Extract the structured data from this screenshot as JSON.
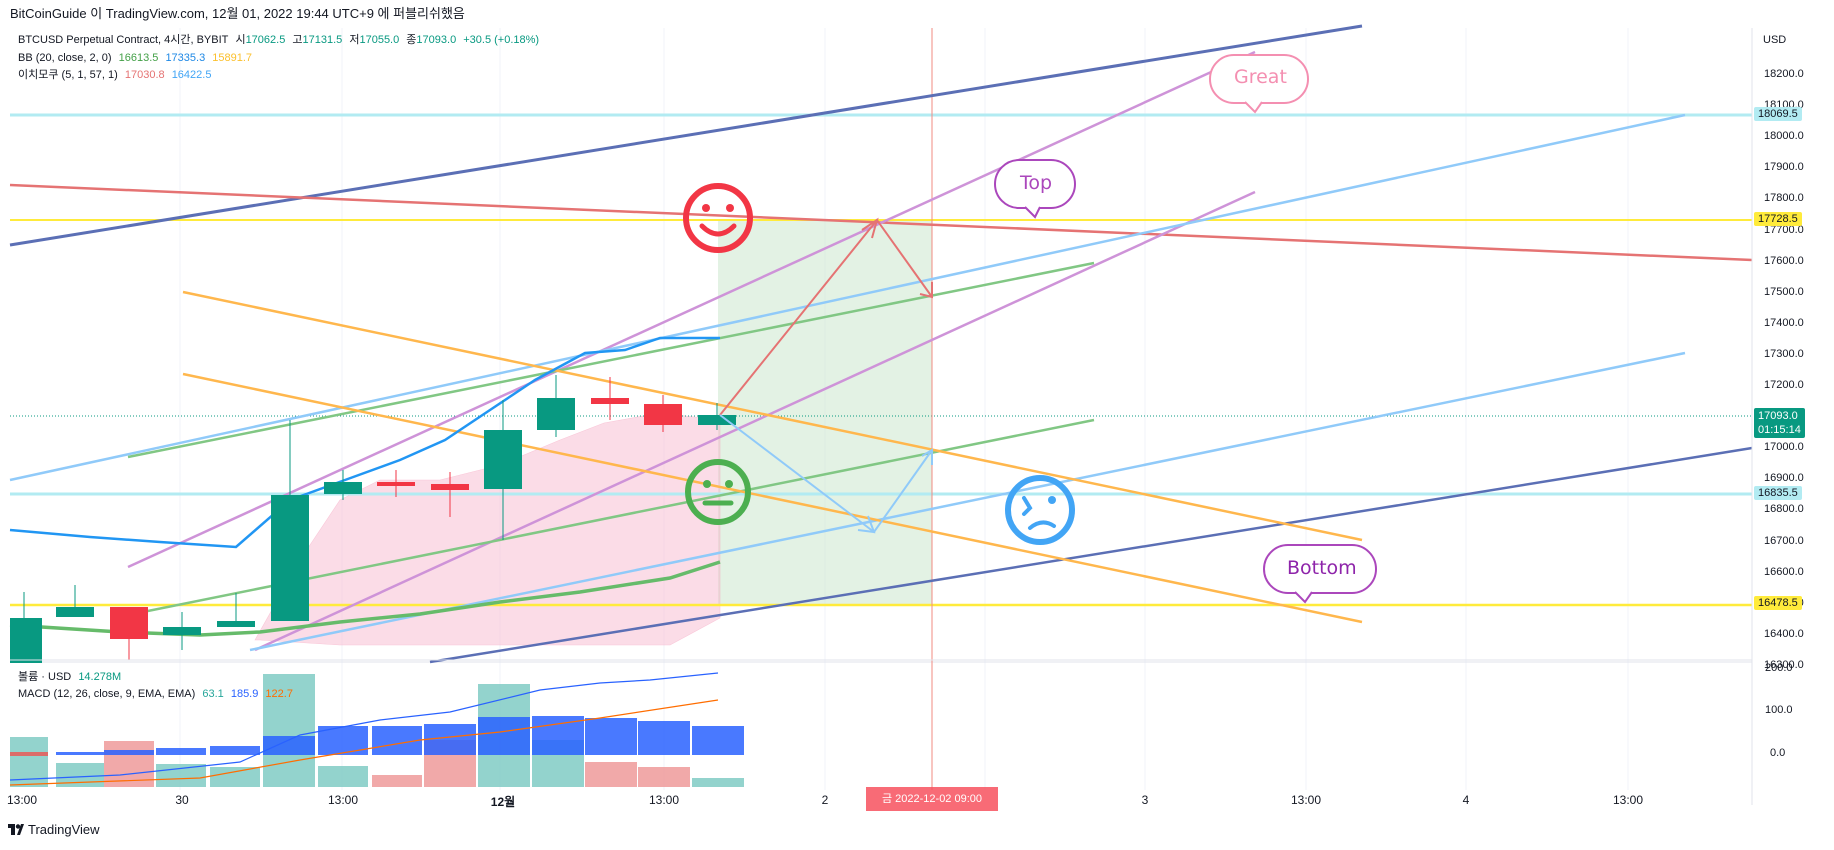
{
  "header": {
    "title": "BitCoinGuide 이 TradingView.com, 12월 01, 2022 19:44 UTC+9 에 퍼블리쉬했음"
  },
  "legend": {
    "symbol": "BTCUSD Perpetual Contract, 4시간, BYBIT",
    "open_label": "시",
    "open": "17062.5",
    "high_label": "고",
    "high": "17131.5",
    "low_label": "저",
    "low": "17055.0",
    "close_label": "종",
    "close": "17093.0",
    "change": "+30.5 (+0.18%)",
    "bb_label": "BB (20, close, 2, 0)",
    "bb_basis": "16613.5",
    "bb_upper": "17335.3",
    "bb_lower": "15891.7",
    "ichimoku_label": "이치모쿠 (5, 1, 57, 1)",
    "ichimoku_a": "17030.8",
    "ichimoku_b": "16422.5",
    "volume_label": "볼륨 · USD",
    "volume_value": "14.278M",
    "macd_label": "MACD (12, 26, close, 9, EMA, EMA)",
    "macd_hist": "63.1",
    "macd_line": "185.9",
    "macd_signal": "122.7"
  },
  "price_axis": {
    "currency": "USD",
    "ticks": [
      "18200.0",
      "18100.0",
      "18000.0",
      "17900.0",
      "17800.0",
      "17700.0",
      "17600.0",
      "17500.0",
      "17400.0",
      "17300.0",
      "17200.0",
      "17100.0",
      "17000.0",
      "16900.0",
      "16800.0",
      "16700.0",
      "16600.0",
      "16500.0",
      "16400.0",
      "16300.0"
    ],
    "markers": {
      "resistance_top": "18069.5",
      "yellow_upper": "17728.5",
      "current_price": "17093.0",
      "countdown": "01:15:14",
      "support_mid": "16835.5",
      "yellow_lower": "16478.5"
    },
    "volume_ticks": [
      "200.0",
      "100.0",
      "0.0"
    ]
  },
  "time_axis": {
    "labels": [
      "13:00",
      "30",
      "13:00",
      "12월",
      "13:00",
      "2",
      "3",
      "13:00",
      "4",
      "13:00"
    ],
    "crosshair_label": "금 2022-12-02   09:00"
  },
  "annotations": {
    "great": "Great",
    "top": "Top",
    "bottom": "Bottom"
  },
  "footer": {
    "brand": "TradingView"
  },
  "colors": {
    "up": "#089981",
    "down": "#f23645",
    "yellow": "#ffeb3b",
    "cyan": "#b2ebf2",
    "navy": "#5b6fb5",
    "purple": "#ce93d8",
    "orange": "#ffb74d",
    "lightblue": "#90caf9",
    "green": "#81c784",
    "red": "#e57373",
    "pink": "#f48fb1"
  }
}
